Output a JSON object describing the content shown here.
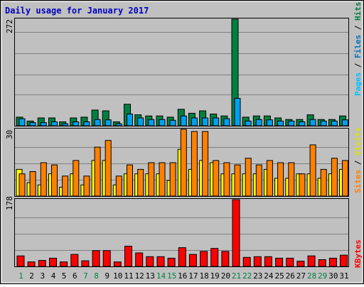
{
  "title": "Daily usage for January 2017",
  "panels": {
    "top": {
      "max_label": "272",
      "right_label": {
        "pages": "Pages",
        "sep1": " / ",
        "files": "Files",
        "sep2": " / ",
        "hits": "Hits"
      }
    },
    "mid": {
      "max_label": "30",
      "right_label": {
        "sites": "Sites",
        "sep": " / ",
        "visits": "Visits"
      }
    },
    "bottom": {
      "max_label": "178",
      "right_label": {
        "kbytes": "KBytes"
      }
    }
  },
  "colors": {
    "background": "#c0c0c0",
    "title": "#0000c0",
    "hits": "#008040",
    "files": "#00a0f0",
    "pages": "#00c0ff",
    "visits": "#ffff00",
    "sites": "#ff8000",
    "kbytes": "#ff0000",
    "weekend_day": "#008040",
    "weekday": "#000000"
  },
  "chart_data": [
    {
      "type": "bar",
      "title": "Daily usage for January 2017",
      "categories": [
        "1",
        "2",
        "3",
        "4",
        "5",
        "6",
        "7",
        "8",
        "9",
        "10",
        "11",
        "12",
        "13",
        "14",
        "15",
        "16",
        "17",
        "18",
        "19",
        "20",
        "21",
        "22",
        "23",
        "24",
        "25",
        "26",
        "27",
        "28",
        "29",
        "30",
        "31"
      ],
      "weekend_days": [
        1,
        7,
        8,
        14,
        15,
        21,
        22,
        28,
        29
      ],
      "ylim": [
        0,
        272
      ],
      "series": [
        {
          "name": "Hits",
          "values": [
            22,
            12,
            20,
            20,
            10,
            20,
            22,
            40,
            38,
            10,
            55,
            28,
            25,
            25,
            22,
            42,
            32,
            38,
            30,
            25,
            272,
            22,
            25,
            25,
            20,
            16,
            16,
            28,
            16,
            16,
            25
          ]
        },
        {
          "name": "Files",
          "values": [
            18,
            8,
            8,
            10,
            5,
            10,
            10,
            16,
            15,
            5,
            30,
            20,
            16,
            16,
            14,
            25,
            20,
            20,
            20,
            18,
            70,
            12,
            16,
            15,
            12,
            12,
            10,
            16,
            12,
            12,
            15
          ]
        },
        {
          "name": "Pages",
          "values": [
            0,
            0,
            0,
            0,
            0,
            0,
            0,
            0,
            0,
            0,
            0,
            0,
            0,
            0,
            0,
            0,
            0,
            0,
            0,
            0,
            0,
            0,
            0,
            0,
            0,
            0,
            0,
            0,
            0,
            0,
            0
          ]
        }
      ]
    },
    {
      "type": "bar",
      "categories": [
        "1",
        "2",
        "3",
        "4",
        "5",
        "6",
        "7",
        "8",
        "9",
        "10",
        "11",
        "12",
        "13",
        "14",
        "15",
        "16",
        "17",
        "18",
        "19",
        "20",
        "21",
        "22",
        "23",
        "24",
        "25",
        "26",
        "27",
        "28",
        "29",
        "30",
        "31"
      ],
      "ylim": [
        0,
        30
      ],
      "series": [
        {
          "name": "Visits",
          "values": [
            12,
            6,
            5,
            10,
            4,
            10,
            5,
            16,
            16,
            5,
            10,
            10,
            10,
            10,
            7,
            21,
            12,
            16,
            15,
            10,
            10,
            10,
            10,
            12,
            8,
            8,
            10,
            10,
            8,
            10,
            12
          ]
        },
        {
          "name": "Sites",
          "values": [
            10,
            11,
            15,
            14,
            9,
            16,
            9,
            22,
            25,
            9,
            14,
            12,
            15,
            15,
            15,
            30,
            29,
            29,
            16,
            15,
            14,
            17,
            14,
            16,
            15,
            15,
            10,
            23,
            12,
            17,
            16
          ]
        }
      ]
    },
    {
      "type": "bar",
      "categories": [
        "1",
        "2",
        "3",
        "4",
        "5",
        "6",
        "7",
        "8",
        "9",
        "10",
        "11",
        "12",
        "13",
        "14",
        "15",
        "16",
        "17",
        "18",
        "19",
        "20",
        "21",
        "22",
        "23",
        "24",
        "25",
        "26",
        "27",
        "28",
        "29",
        "30",
        "31"
      ],
      "ylim": [
        0,
        178
      ],
      "series": [
        {
          "name": "KBytes",
          "values": [
            28,
            12,
            16,
            22,
            12,
            32,
            15,
            42,
            42,
            12,
            54,
            36,
            26,
            26,
            22,
            50,
            32,
            40,
            48,
            40,
            178,
            24,
            26,
            26,
            22,
            22,
            14,
            28,
            18,
            22,
            30
          ]
        }
      ]
    }
  ]
}
